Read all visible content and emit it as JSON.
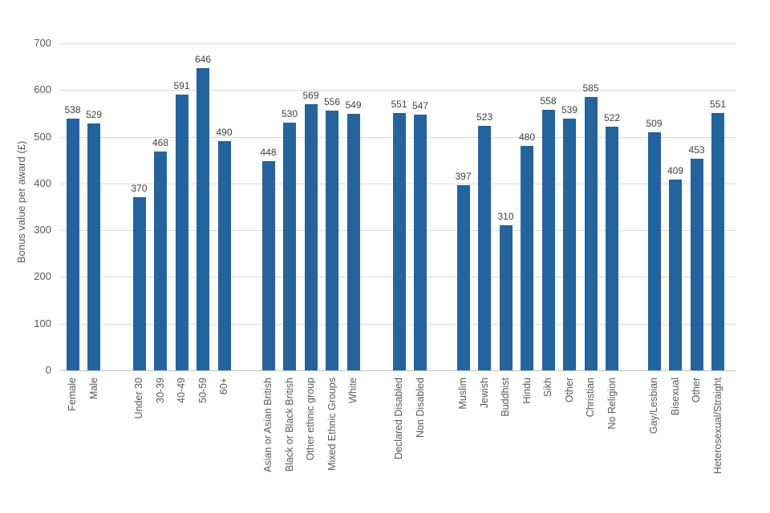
{
  "chart_data": {
    "type": "bar",
    "title": "",
    "xlabel": "",
    "ylabel": "Bonus value per award (£)",
    "ylim": [
      0,
      700
    ],
    "yticks": [
      0,
      100,
      200,
      300,
      400,
      500,
      600,
      700
    ],
    "grid": true,
    "legend": false,
    "bar_color": "#24639c",
    "data_label_color": "#404040",
    "axis_label_color": "#595959",
    "gridline_color": "#d9d9d9",
    "groups": [
      {
        "name": "gender",
        "categories": [
          "Female",
          "Male"
        ],
        "values": [
          538,
          529
        ]
      },
      {
        "name": "age",
        "categories": [
          "Under 30",
          "30-39",
          "40-49",
          "50-59",
          "60+"
        ],
        "values": [
          370,
          468,
          591,
          646,
          490
        ]
      },
      {
        "name": "ethnicity",
        "categories": [
          "Asian or Asian British",
          "Black or Black British",
          "Other ethnic group",
          "Mixed Ethnic Groups",
          "White"
        ],
        "values": [
          448,
          530,
          569,
          556,
          549
        ]
      },
      {
        "name": "disability",
        "categories": [
          "Declared Disabled",
          "Non Disabled"
        ],
        "values": [
          551,
          547
        ]
      },
      {
        "name": "religion",
        "categories": [
          "Muslim",
          "Jewish",
          "Buddhist",
          "Hindu",
          "Sikh",
          "Other",
          "Christian",
          "No Religion"
        ],
        "values": [
          397,
          523,
          310,
          480,
          558,
          539,
          585,
          522
        ]
      },
      {
        "name": "sexual-orientation",
        "categories": [
          "Gay/Lesbian",
          "Bisexual",
          "Other",
          "Heterosexual/Straight"
        ],
        "values": [
          509,
          409,
          453,
          551
        ]
      }
    ]
  }
}
